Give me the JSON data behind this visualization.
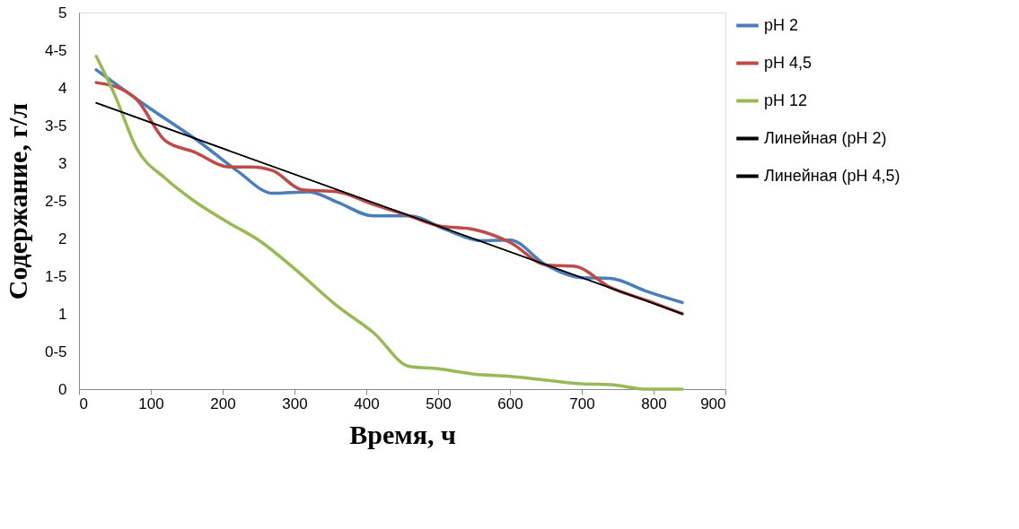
{
  "chart_data": {
    "type": "line",
    "xlabel": "Время, ч",
    "ylabel": "Содержание, г/л",
    "xlim": [
      0,
      900
    ],
    "xticks": [
      0,
      100,
      200,
      300,
      400,
      500,
      600,
      700,
      800,
      900
    ],
    "ylim": [
      0,
      5
    ],
    "yticks": [
      0,
      {
        "value": 0.5,
        "label": "0-5"
      },
      1,
      {
        "value": 1.5,
        "label": "1-5"
      },
      2,
      {
        "value": 2.5,
        "label": "2-5"
      },
      3,
      {
        "value": 3.5,
        "label": "3-5"
      },
      4,
      {
        "value": 4.5,
        "label": "4-5"
      },
      5
    ],
    "grid": false,
    "legend": "right",
    "marker": "none",
    "series": [
      {
        "name": "pH 2",
        "color": "#4a7ebb",
        "x": [
          24,
          100,
          168,
          220,
          270,
          320,
          360,
          410,
          460,
          510,
          560,
          600,
          650,
          700,
          740,
          790,
          840
        ],
        "values": [
          4.24,
          3.72,
          3.28,
          2.9,
          2.6,
          2.62,
          2.48,
          2.3,
          2.3,
          2.12,
          1.97,
          1.98,
          1.65,
          1.48,
          1.47,
          1.3,
          1.15
        ]
      },
      {
        "name": "pH 4,5",
        "color": "#be4b48",
        "x": [
          24,
          60,
          80,
          120,
          160,
          210,
          240,
          270,
          310,
          360,
          410,
          460,
          500,
          550,
          600,
          650,
          690,
          740,
          790,
          840
        ],
        "values": [
          4.07,
          3.98,
          3.85,
          3.3,
          3.15,
          2.95,
          2.95,
          2.9,
          2.65,
          2.62,
          2.45,
          2.3,
          2.17,
          2.12,
          1.95,
          1.65,
          1.63,
          1.35,
          1.18,
          1.0
        ]
      },
      {
        "name": "pH 12",
        "color": "#98b954",
        "x": [
          24,
          50,
          80,
          120,
          160,
          210,
          250,
          300,
          360,
          410,
          460,
          500,
          550,
          600,
          650,
          700,
          740,
          790,
          840
        ],
        "values": [
          4.42,
          3.9,
          3.2,
          2.8,
          2.5,
          2.2,
          1.98,
          1.6,
          1.1,
          0.75,
          0.3,
          0.27,
          0.2,
          0.17,
          0.12,
          0.07,
          0.06,
          0.0,
          0.0
        ]
      },
      {
        "name": "Линейная (pH 2)",
        "color": "#000000",
        "x": [
          24,
          840
        ],
        "values": [
          3.8,
          1.0
        ]
      },
      {
        "name": "Линейная (pH 4,5)",
        "color": "#000000",
        "x": [
          24,
          840
        ],
        "values": [
          3.8,
          1.0
        ]
      }
    ]
  }
}
